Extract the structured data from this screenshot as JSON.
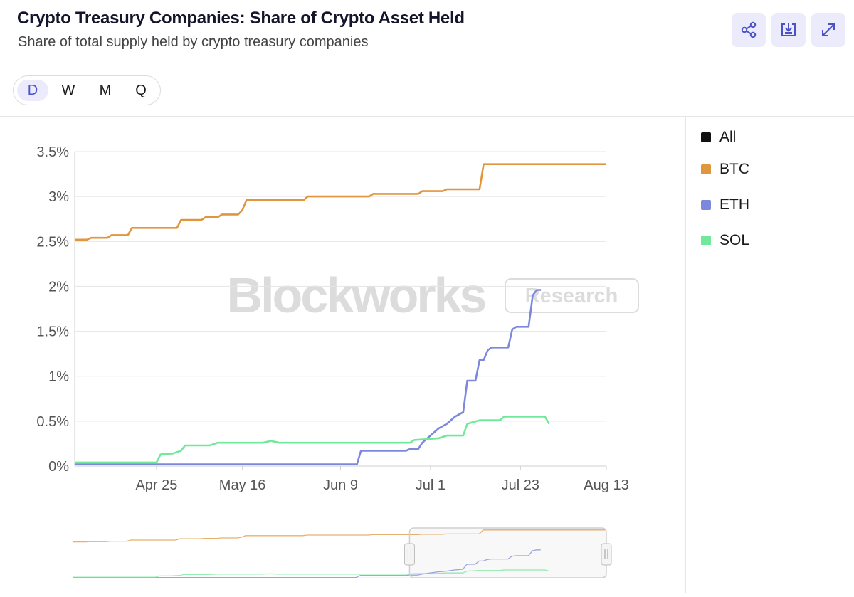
{
  "header": {
    "title": "Crypto Treasury Companies: Share of Crypto Asset Held",
    "subtitle": "Share of total supply held by crypto treasury companies"
  },
  "actions": {
    "share_icon": "share-icon",
    "download_icon": "download-icon",
    "expand_icon": "expand-icon"
  },
  "periods": [
    "D",
    "W",
    "M",
    "Q"
  ],
  "selected_period": "D",
  "watermark": {
    "brand": "Blockworks",
    "badge": "Research"
  },
  "legend": [
    {
      "label": "All",
      "color": "#111111"
    },
    {
      "label": "BTC",
      "color": "#e0963e"
    },
    {
      "label": "ETH",
      "color": "#7b88de"
    },
    {
      "label": "SOL",
      "color": "#72e89a"
    }
  ],
  "chart_data": {
    "type": "line",
    "title": "Crypto Treasury Companies: Share of Crypto Asset Held",
    "xlabel": "",
    "ylabel": "",
    "x_tick_labels": [
      "Apr 25",
      "May 16",
      "Jun 9",
      "Jul 1",
      "Jul 23",
      "Aug 13"
    ],
    "x_tick_days": [
      20,
      41,
      65,
      87,
      109,
      130
    ],
    "y_tick_labels": [
      "0%",
      "0.5%",
      "1%",
      "1.5%",
      "2%",
      "2.5%",
      "3%",
      "3.5%"
    ],
    "y_tick_values": [
      0,
      0.5,
      1,
      1.5,
      2,
      2.5,
      3,
      3.5
    ],
    "xlim": [
      0,
      130
    ],
    "ylim": [
      0,
      3.5
    ],
    "x_unit": "days since Apr 5",
    "y_unit": "%",
    "grid": true,
    "legend_position": "right",
    "series": [
      {
        "name": "BTC",
        "color": "#e0963e",
        "points": [
          [
            0,
            2.52
          ],
          [
            3,
            2.52
          ],
          [
            4,
            2.54
          ],
          [
            8,
            2.54
          ],
          [
            9,
            2.57
          ],
          [
            13,
            2.57
          ],
          [
            14,
            2.65
          ],
          [
            25,
            2.65
          ],
          [
            26,
            2.74
          ],
          [
            31,
            2.74
          ],
          [
            32,
            2.77
          ],
          [
            35,
            2.77
          ],
          [
            36,
            2.8
          ],
          [
            40,
            2.8
          ],
          [
            41,
            2.85
          ],
          [
            42,
            2.96
          ],
          [
            56,
            2.96
          ],
          [
            57,
            3.0
          ],
          [
            72,
            3.0
          ],
          [
            73,
            3.03
          ],
          [
            84,
            3.03
          ],
          [
            85,
            3.06
          ],
          [
            90,
            3.06
          ],
          [
            91,
            3.08
          ],
          [
            99,
            3.08
          ],
          [
            100,
            3.36
          ],
          [
            130,
            3.36
          ]
        ]
      },
      {
        "name": "ETH",
        "color": "#7b88de",
        "points": [
          [
            0,
            0.02
          ],
          [
            69,
            0.02
          ],
          [
            70,
            0.17
          ],
          [
            81,
            0.17
          ],
          [
            82,
            0.19
          ],
          [
            84,
            0.19
          ],
          [
            85,
            0.26
          ],
          [
            87,
            0.34
          ],
          [
            89,
            0.42
          ],
          [
            91,
            0.47
          ],
          [
            93,
            0.55
          ],
          [
            95,
            0.6
          ],
          [
            96,
            0.95
          ],
          [
            98,
            0.95
          ],
          [
            99,
            1.18
          ],
          [
            100,
            1.18
          ],
          [
            101,
            1.29
          ],
          [
            102,
            1.32
          ],
          [
            106,
            1.32
          ],
          [
            107,
            1.52
          ],
          [
            108,
            1.55
          ],
          [
            111,
            1.55
          ],
          [
            112,
            1.9
          ],
          [
            113,
            1.96
          ],
          [
            114,
            1.96
          ]
        ]
      },
      {
        "name": "SOL",
        "color": "#72e89a",
        "points": [
          [
            0,
            0.04
          ],
          [
            20,
            0.04
          ],
          [
            21,
            0.13
          ],
          [
            24,
            0.14
          ],
          [
            26,
            0.17
          ],
          [
            27,
            0.23
          ],
          [
            33,
            0.23
          ],
          [
            35,
            0.26
          ],
          [
            46,
            0.26
          ],
          [
            48,
            0.28
          ],
          [
            50,
            0.26
          ],
          [
            67,
            0.26
          ],
          [
            82,
            0.26
          ],
          [
            83,
            0.29
          ],
          [
            89,
            0.31
          ],
          [
            91,
            0.34
          ],
          [
            95,
            0.34
          ],
          [
            96,
            0.47
          ],
          [
            99,
            0.51
          ],
          [
            104,
            0.51
          ],
          [
            105,
            0.55
          ],
          [
            113,
            0.55
          ],
          [
            115,
            0.55
          ],
          [
            116,
            0.47
          ]
        ]
      }
    ]
  }
}
